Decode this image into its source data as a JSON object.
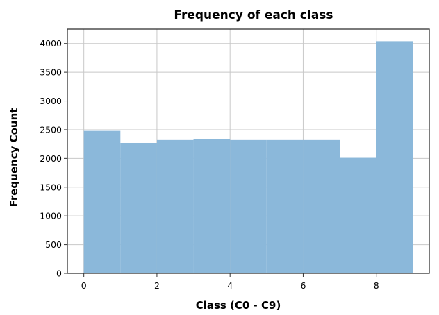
{
  "chart_data": {
    "type": "bar",
    "title": "Frequency of each class",
    "xlabel": "Class (C0 - C9)",
    "ylabel": "Frequency Count",
    "bins": [
      {
        "x0": 0,
        "x1": 1,
        "value": 2480
      },
      {
        "x0": 1,
        "x1": 2,
        "value": 2270
      },
      {
        "x0": 2,
        "x1": 3,
        "value": 2320
      },
      {
        "x0": 3,
        "x1": 4,
        "value": 2340
      },
      {
        "x0": 4,
        "x1": 5,
        "value": 2320
      },
      {
        "x0": 5,
        "x1": 6,
        "value": 2320
      },
      {
        "x0": 6,
        "x1": 7,
        "value": 2320
      },
      {
        "x0": 7,
        "x1": 8,
        "value": 2010
      },
      {
        "x0": 8,
        "x1": 9,
        "value": 4040
      }
    ],
    "xlim": [
      -0.45,
      9.45
    ],
    "ylim": [
      0,
      4250
    ],
    "xticks": [
      0,
      2,
      4,
      6,
      8
    ],
    "yticks": [
      0,
      500,
      1000,
      1500,
      2000,
      2500,
      3000,
      3500,
      4000
    ],
    "grid": true,
    "bar_color": "#8bb8da"
  }
}
